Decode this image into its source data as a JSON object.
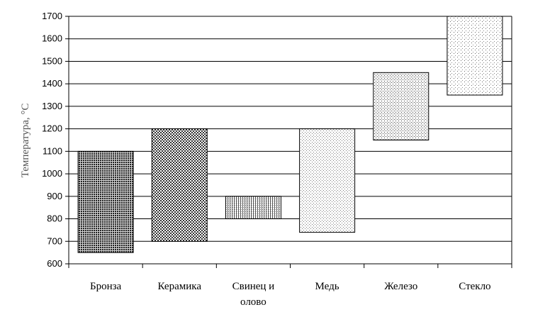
{
  "chart_data": {
    "type": "bar",
    "subtype": "floating-range",
    "ylabel": "Температура, °C",
    "xlabel": "",
    "ylim": [
      600,
      1700
    ],
    "yticks": [
      600,
      700,
      800,
      900,
      1000,
      1100,
      1200,
      1300,
      1400,
      1500,
      1600,
      1700
    ],
    "grid": true,
    "categories": [
      {
        "lines": [
          "Бронза"
        ]
      },
      {
        "lines": [
          "Керамика"
        ]
      },
      {
        "lines": [
          "Свинец и",
          "олово"
        ]
      },
      {
        "lines": [
          "Медь"
        ]
      },
      {
        "lines": [
          "Железо"
        ]
      },
      {
        "lines": [
          "Стекло"
        ]
      }
    ],
    "ranges": [
      {
        "low": 650,
        "high": 1100,
        "pattern": "dense-dots"
      },
      {
        "low": 700,
        "high": 1200,
        "pattern": "checker"
      },
      {
        "low": 800,
        "high": 900,
        "pattern": "vertical-lines"
      },
      {
        "low": 740,
        "high": 1200,
        "pattern": "light-dots"
      },
      {
        "low": 1150,
        "high": 1450,
        "pattern": "medium-dots"
      },
      {
        "low": 1350,
        "high": 1700,
        "pattern": "sparse-dots"
      }
    ]
  }
}
